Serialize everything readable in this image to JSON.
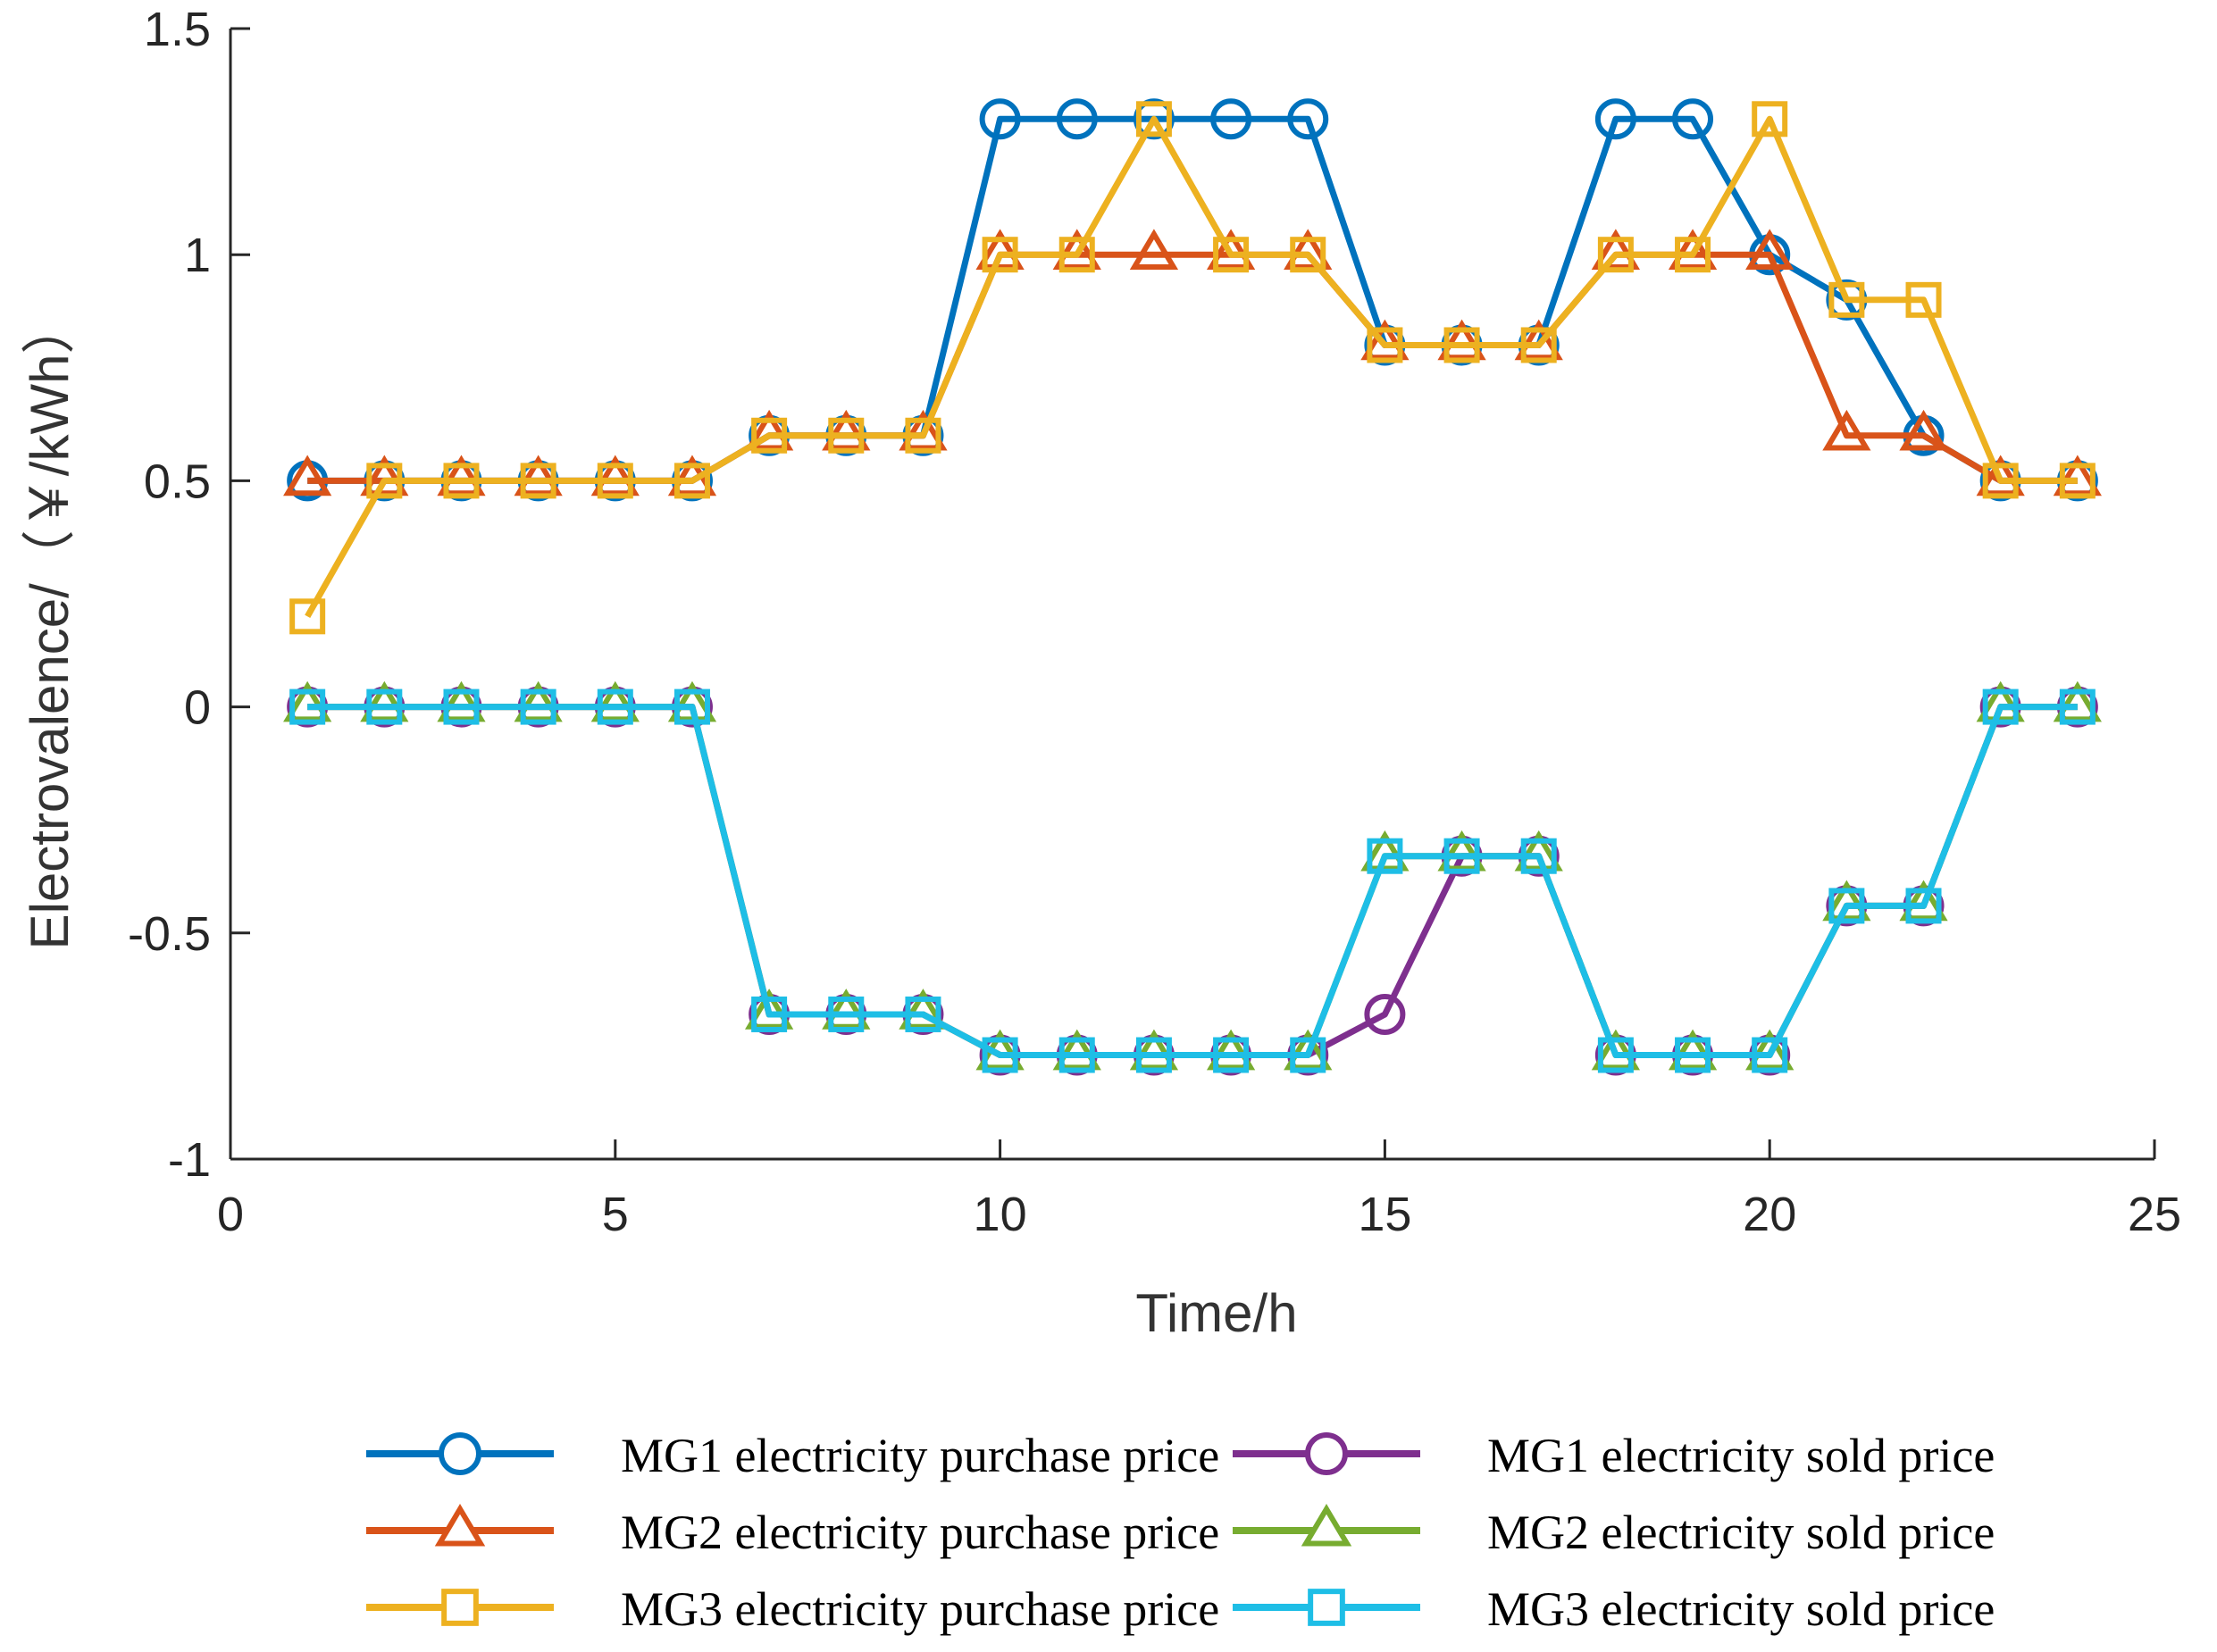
{
  "chart_data": {
    "type": "line",
    "title": "",
    "xlabel": "Time/h",
    "ylabel": "Electrovalence/（￥/kWh）",
    "xlim": [
      0,
      25
    ],
    "ylim": [
      -1,
      1.5
    ],
    "xticks": [
      0,
      5,
      10,
      15,
      20,
      25
    ],
    "yticks": [
      -1,
      -0.5,
      0,
      0.5,
      1,
      1.5
    ],
    "xtick_labels": [
      "0",
      "5",
      "10",
      "15",
      "20",
      "25"
    ],
    "ytick_labels": [
      "-1",
      "-0.5",
      "0",
      "0.5",
      "1",
      "1.5"
    ],
    "grid": false,
    "legend_position": "bottom",
    "x": [
      1,
      2,
      3,
      4,
      5,
      6,
      7,
      8,
      9,
      10,
      11,
      12,
      13,
      14,
      15,
      16,
      17,
      18,
      19,
      20,
      21,
      22,
      23,
      24
    ],
    "series": [
      {
        "name": "MG1 electricity purchase price",
        "color": "#0072BD",
        "marker": "circle",
        "values": [
          0.5,
          0.5,
          0.5,
          0.5,
          0.5,
          0.5,
          0.6,
          0.6,
          0.6,
          1.3,
          1.3,
          1.3,
          1.3,
          1.3,
          0.8,
          0.8,
          0.8,
          1.3,
          1.3,
          1.0,
          0.9,
          0.6,
          0.5,
          0.5
        ]
      },
      {
        "name": "MG2 electricity purchase price",
        "color": "#D95319",
        "marker": "triangle",
        "values": [
          0.5,
          0.5,
          0.5,
          0.5,
          0.5,
          0.5,
          0.6,
          0.6,
          0.6,
          1.0,
          1.0,
          1.0,
          1.0,
          1.0,
          0.8,
          0.8,
          0.8,
          1.0,
          1.0,
          1.0,
          0.6,
          0.6,
          0.5,
          0.5
        ]
      },
      {
        "name": "MG3 electricity purchase price",
        "color": "#EDB120",
        "marker": "square",
        "values": [
          0.2,
          0.5,
          0.5,
          0.5,
          0.5,
          0.5,
          0.6,
          0.6,
          0.6,
          1.0,
          1.0,
          1.3,
          1.0,
          1.0,
          0.8,
          0.8,
          0.8,
          1.0,
          1.0,
          1.3,
          0.9,
          0.9,
          0.5,
          0.5
        ]
      },
      {
        "name": "MG1 electricity sold price",
        "color": "#7E2F8E",
        "marker": "circle",
        "values": [
          0,
          0,
          0,
          0,
          0,
          0,
          -0.68,
          -0.68,
          -0.68,
          -0.77,
          -0.77,
          -0.77,
          -0.77,
          -0.77,
          -0.68,
          -0.33,
          -0.33,
          -0.77,
          -0.77,
          -0.77,
          -0.44,
          -0.44,
          0,
          0
        ]
      },
      {
        "name": "MG2 electricity sold price",
        "color": "#77AC30",
        "marker": "triangle",
        "values": [
          0,
          0,
          0,
          0,
          0,
          0,
          -0.68,
          -0.68,
          -0.68,
          -0.77,
          -0.77,
          -0.77,
          -0.77,
          -0.77,
          -0.33,
          -0.33,
          -0.33,
          -0.77,
          -0.77,
          -0.77,
          -0.44,
          -0.44,
          0,
          0
        ]
      },
      {
        "name": "MG3 electricity sold price",
        "color": "#1EBEE6",
        "marker": "square",
        "values": [
          0,
          0,
          0,
          0,
          0,
          0,
          -0.68,
          -0.68,
          -0.68,
          -0.77,
          -0.77,
          -0.77,
          -0.77,
          -0.77,
          -0.33,
          -0.33,
          -0.33,
          -0.77,
          -0.77,
          -0.77,
          -0.44,
          -0.44,
          0,
          0
        ]
      }
    ]
  }
}
